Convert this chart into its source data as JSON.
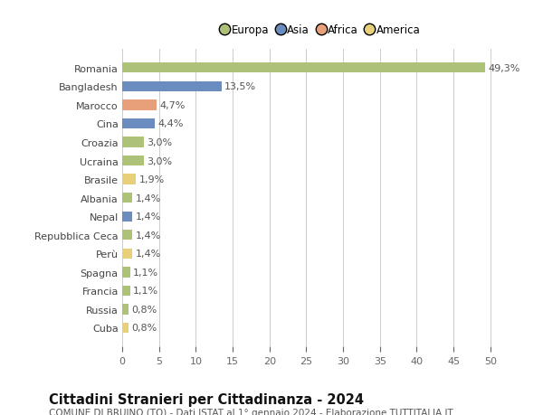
{
  "countries": [
    "Romania",
    "Bangladesh",
    "Marocco",
    "Cina",
    "Croazia",
    "Ucraina",
    "Brasile",
    "Albania",
    "Nepal",
    "Repubblica Ceca",
    "Perù",
    "Spagna",
    "Francia",
    "Russia",
    "Cuba"
  ],
  "values": [
    49.3,
    13.5,
    4.7,
    4.4,
    3.0,
    3.0,
    1.9,
    1.4,
    1.4,
    1.4,
    1.4,
    1.1,
    1.1,
    0.8,
    0.8
  ],
  "labels": [
    "49,3%",
    "13,5%",
    "4,7%",
    "4,4%",
    "3,0%",
    "3,0%",
    "1,9%",
    "1,4%",
    "1,4%",
    "1,4%",
    "1,4%",
    "1,1%",
    "1,1%",
    "0,8%",
    "0,8%"
  ],
  "continents": [
    "Europa",
    "Asia",
    "Africa",
    "Asia",
    "Europa",
    "Europa",
    "America",
    "Europa",
    "Asia",
    "Europa",
    "America",
    "Europa",
    "Europa",
    "Europa",
    "America"
  ],
  "continent_colors": {
    "Europa": "#adc178",
    "Asia": "#6b8cbf",
    "Africa": "#e8a07a",
    "America": "#e8d07a"
  },
  "legend_order": [
    "Europa",
    "Asia",
    "Africa",
    "America"
  ],
  "legend_colors": [
    "#adc178",
    "#6b8cbf",
    "#e8a07a",
    "#e8d07a"
  ],
  "title": "Cittadini Stranieri per Cittadinanza - 2024",
  "subtitle": "COMUNE DI BRUINO (TO) - Dati ISTAT al 1° gennaio 2024 - Elaborazione TUTTITALIA.IT",
  "xlim": [
    0,
    52
  ],
  "xticks": [
    0,
    5,
    10,
    15,
    20,
    25,
    30,
    35,
    40,
    45,
    50
  ],
  "bg_color": "#ffffff",
  "grid_color": "#cccccc",
  "bar_height": 0.55,
  "label_fontsize": 8,
  "tick_fontsize": 8,
  "title_fontsize": 10.5,
  "subtitle_fontsize": 7.5
}
